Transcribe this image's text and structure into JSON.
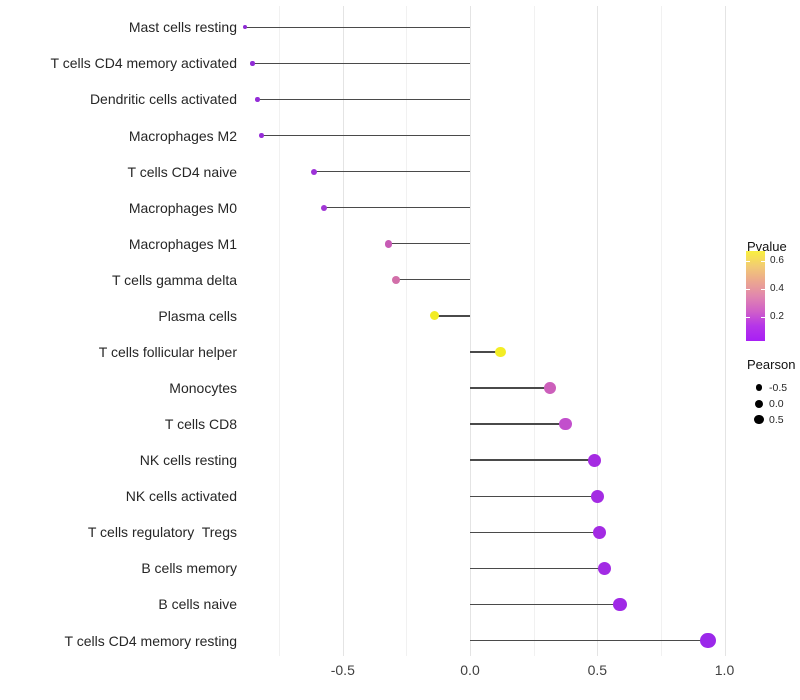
{
  "chart_data": {
    "type": "lollipop",
    "title": "",
    "xlabel": "",
    "ylabel": "",
    "x_axis": {
      "ticks": [
        {
          "value": -0.5,
          "label": "-0.5"
        },
        {
          "value": 0.0,
          "label": "0.0"
        },
        {
          "value": 0.5,
          "label": "0.5"
        },
        {
          "value": 1.0,
          "label": "1.0"
        }
      ],
      "grid_min": -0.75,
      "grid_max": 1.0,
      "minor_step": 0.25
    },
    "rows": [
      {
        "label": "Mast cells resting",
        "pearson": -0.885,
        "color": "#8E2BD4"
      },
      {
        "label": "T cells CD4 memory activated",
        "pearson": -0.855,
        "color": "#912CD6"
      },
      {
        "label": "Dendritic cells activated",
        "pearson": -0.835,
        "color": "#942CD7"
      },
      {
        "label": "Macrophages M2",
        "pearson": -0.82,
        "color": "#972DD8"
      },
      {
        "label": "T cells CD4 naive",
        "pearson": -0.615,
        "color": "#9D32D8"
      },
      {
        "label": "Macrophages M0",
        "pearson": -0.575,
        "color": "#A137D5"
      },
      {
        "label": "Macrophages M1",
        "pearson": -0.32,
        "color": "#C75BB5"
      },
      {
        "label": "T cells gamma delta",
        "pearson": -0.29,
        "color": "#D26FA9"
      },
      {
        "label": "Plasma cells",
        "pearson": -0.14,
        "color": "#F2EC25"
      },
      {
        "label": "T cells follicular helper",
        "pearson": 0.12,
        "color": "#F3ED25"
      },
      {
        "label": "Monocytes",
        "pearson": 0.315,
        "color": "#CC5FBB"
      },
      {
        "label": "T cells CD8",
        "pearson": 0.375,
        "color": "#C24FCC"
      },
      {
        "label": "NK cells resting",
        "pearson": 0.49,
        "color": "#A52BE2"
      },
      {
        "label": "NK cells activated",
        "pearson": 0.5,
        "color": "#A42BE3"
      },
      {
        "label": "T cells regulatory  Tregs",
        "pearson": 0.51,
        "color": "#A32BE3"
      },
      {
        "label": "B cells memory",
        "pearson": 0.53,
        "color": "#A22BE4"
      },
      {
        "label": "B cells naive",
        "pearson": 0.59,
        "color": "#A02AE6"
      },
      {
        "label": "T cells CD4 memory resting",
        "pearson": 0.935,
        "color": "#9B28EA"
      }
    ],
    "legend": {
      "pvalue": {
        "title": "Pvalue",
        "ticks": [
          {
            "value": 0.6,
            "label": "0.6"
          },
          {
            "value": 0.4,
            "label": "0.4"
          },
          {
            "value": 0.2,
            "label": "0.2"
          }
        ],
        "bar_range_bottom_top": [
          0.031,
          0.674
        ],
        "gradient_top_to_bottom": [
          "#F9EF3F",
          "#F2CB74",
          "#ECA88E",
          "#E187AE",
          "#D060C8",
          "#B636E8",
          "#A81FF5"
        ]
      },
      "pearson": {
        "title": "Pearson",
        "items": [
          {
            "label": "-0.5",
            "value": -0.5
          },
          {
            "label": "0.0",
            "value": 0.0
          },
          {
            "label": "0.5",
            "value": 0.5
          }
        ],
        "dot_color": "#000000"
      }
    }
  }
}
